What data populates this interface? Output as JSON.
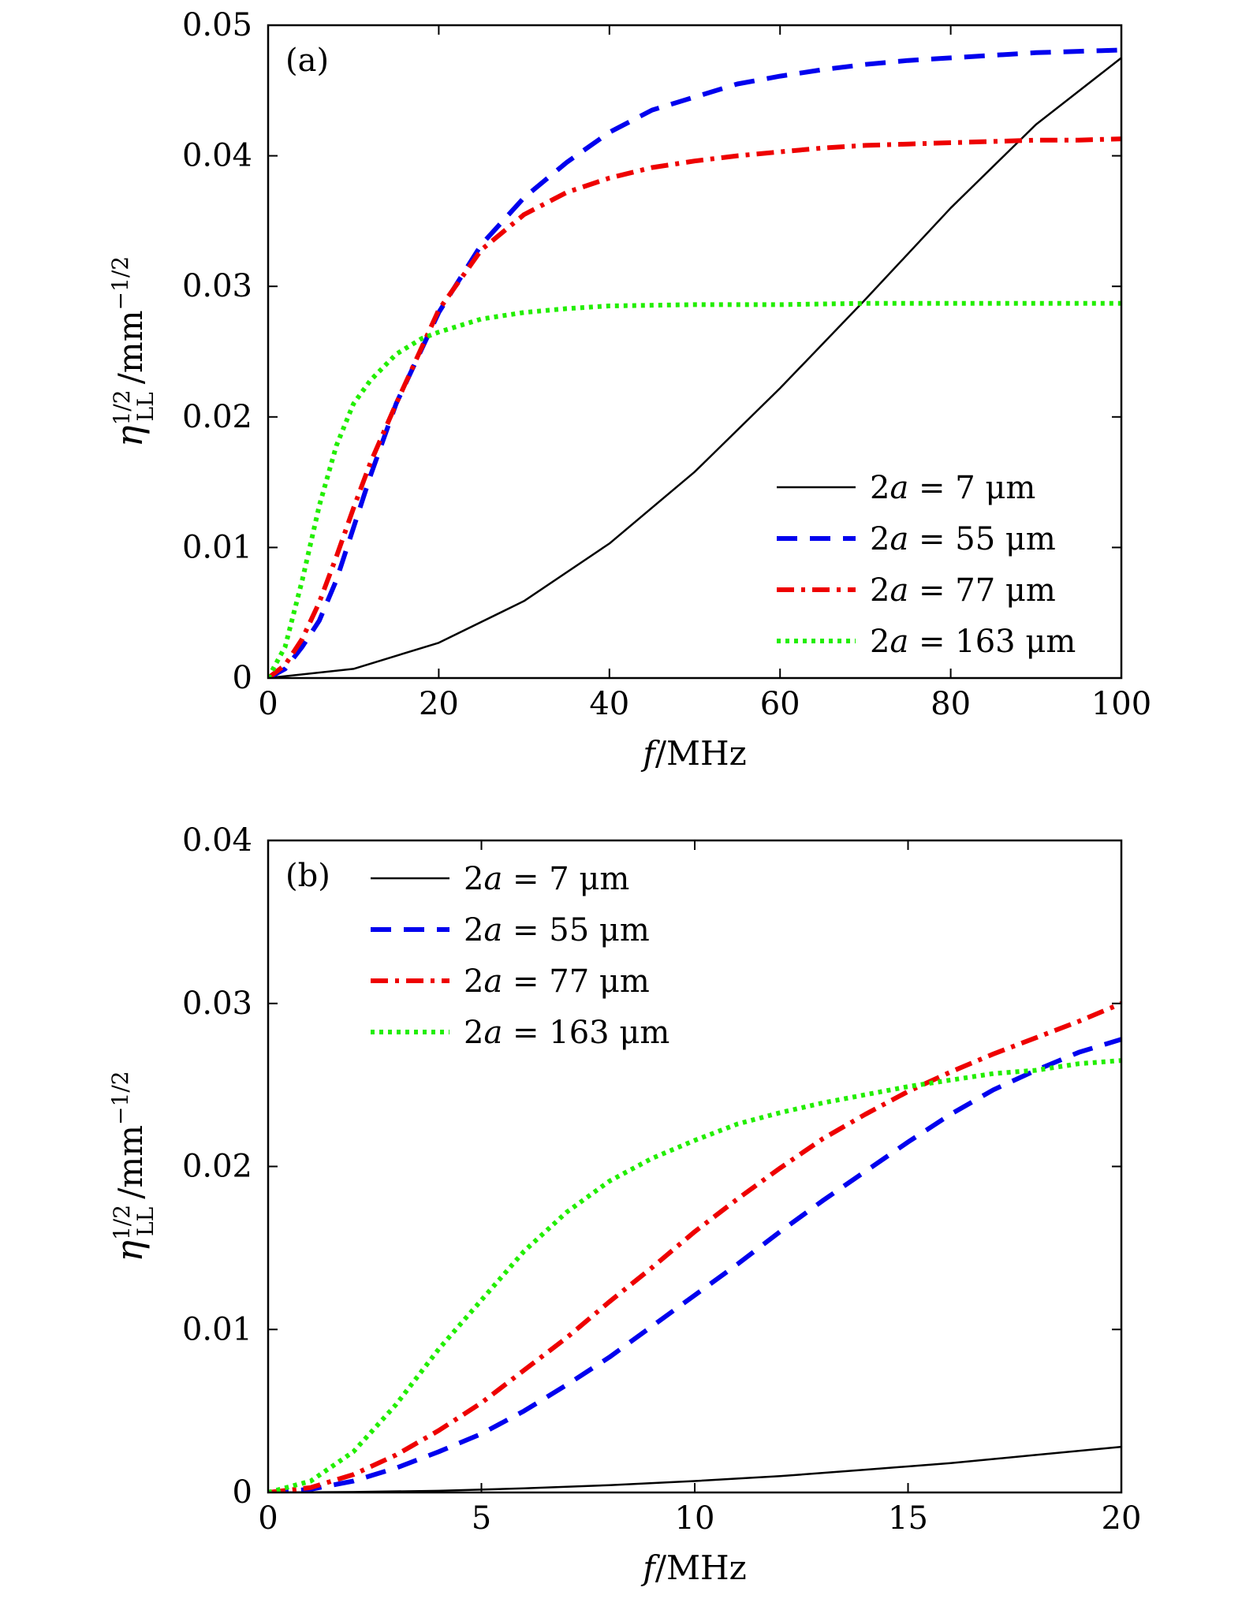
{
  "chart_data": [
    {
      "type": "line",
      "panel_label": "(a)",
      "xlabel": "f/MHz",
      "ylabel": "η_LL^{1/2}/mm^{−1/2}",
      "xlim": [
        0,
        100
      ],
      "ylim": [
        0,
        0.05
      ],
      "xticks": [
        "0",
        "20",
        "40",
        "60",
        "80",
        "100"
      ],
      "yticks": [
        "0",
        "0.01",
        "0.02",
        "0.03",
        "0.04",
        "0.05"
      ],
      "legend": "bottom-right",
      "series": [
        {
          "name": "2a = 7 μm",
          "color": "#000000",
          "style": "solid",
          "x": [
            0,
            10,
            20,
            30,
            40,
            50,
            60,
            70,
            80,
            90,
            100
          ],
          "y": [
            0,
            0.0007,
            0.0027,
            0.0059,
            0.0103,
            0.0158,
            0.0222,
            0.029,
            0.036,
            0.0424,
            0.0475
          ]
        },
        {
          "name": "2a = 55 μm",
          "color": "#0000ee",
          "style": "dashed",
          "x": [
            0,
            2,
            4,
            6,
            8,
            10,
            12,
            15,
            20,
            25,
            30,
            35,
            40,
            45,
            50,
            55,
            60,
            65,
            70,
            75,
            80,
            85,
            90,
            95,
            100
          ],
          "y": [
            0,
            0.0007,
            0.0024,
            0.0044,
            0.0075,
            0.0115,
            0.0155,
            0.021,
            0.028,
            0.0332,
            0.0368,
            0.0395,
            0.0418,
            0.0435,
            0.0445,
            0.0455,
            0.0461,
            0.0466,
            0.047,
            0.0473,
            0.0475,
            0.0477,
            0.0479,
            0.048,
            0.0481
          ]
        },
        {
          "name": "2a = 77 μm",
          "color": "#ee0000",
          "style": "dashdot",
          "x": [
            0,
            2,
            4,
            6,
            8,
            10,
            12,
            15,
            20,
            25,
            30,
            35,
            40,
            45,
            50,
            55,
            60,
            65,
            70,
            75,
            80,
            85,
            90,
            95,
            100
          ],
          "y": [
            0,
            0.001,
            0.003,
            0.0058,
            0.0093,
            0.013,
            0.0165,
            0.021,
            0.0282,
            0.0328,
            0.0355,
            0.0372,
            0.0383,
            0.0391,
            0.0396,
            0.04,
            0.0403,
            0.0406,
            0.0408,
            0.0409,
            0.041,
            0.0411,
            0.0412,
            0.0412,
            0.0413
          ]
        },
        {
          "name": "2a = 163 μm",
          "color": "#22ee00",
          "style": "dotted",
          "x": [
            0,
            2,
            4,
            6,
            8,
            10,
            12,
            15,
            18,
            20,
            25,
            30,
            35,
            40,
            50,
            60,
            70,
            80,
            90,
            100
          ],
          "y": [
            0,
            0.0024,
            0.0075,
            0.0132,
            0.0178,
            0.021,
            0.0228,
            0.0248,
            0.026,
            0.0265,
            0.0275,
            0.028,
            0.0283,
            0.0285,
            0.0286,
            0.0286,
            0.0287,
            0.0287,
            0.0287,
            0.0287
          ]
        }
      ]
    },
    {
      "type": "line",
      "panel_label": "(b)",
      "xlabel": "f/MHz",
      "ylabel": "η_LL^{1/2}/mm^{−1/2}",
      "xlim": [
        0,
        20
      ],
      "ylim": [
        0,
        0.04
      ],
      "xticks": [
        "0",
        "5",
        "10",
        "15",
        "20"
      ],
      "yticks": [
        "0",
        "0.01",
        "0.02",
        "0.03",
        "0.04"
      ],
      "legend": "top-left",
      "series": [
        {
          "name": "2a = 7 μm",
          "color": "#000000",
          "style": "solid",
          "x": [
            0,
            2,
            4,
            6,
            8,
            10,
            12,
            14,
            16,
            18,
            20
          ],
          "y": [
            0,
            3e-05,
            0.0001,
            0.00025,
            0.00045,
            0.0007,
            0.001,
            0.0014,
            0.0018,
            0.0023,
            0.0028
          ]
        },
        {
          "name": "2a = 55 μm",
          "color": "#0000ee",
          "style": "dashed",
          "x": [
            0,
            1,
            2,
            3,
            4,
            5,
            6,
            7,
            8,
            9,
            10,
            11,
            12,
            13,
            14,
            15,
            16,
            17,
            18,
            19,
            20
          ],
          "y": [
            0,
            0.0002,
            0.0007,
            0.0015,
            0.0025,
            0.0036,
            0.005,
            0.0066,
            0.0083,
            0.0102,
            0.0121,
            0.014,
            0.016,
            0.0179,
            0.0197,
            0.0215,
            0.0232,
            0.0247,
            0.0259,
            0.027,
            0.0278
          ]
        },
        {
          "name": "2a = 77 μm",
          "color": "#ee0000",
          "style": "dashdot",
          "x": [
            0,
            1,
            2,
            3,
            4,
            5,
            6,
            7,
            8,
            9,
            10,
            11,
            12,
            13,
            14,
            15,
            16,
            17,
            18,
            19,
            20
          ],
          "y": [
            0,
            0.0003,
            0.0011,
            0.0023,
            0.0038,
            0.0055,
            0.0075,
            0.0095,
            0.0117,
            0.0138,
            0.016,
            0.018,
            0.0199,
            0.0217,
            0.0232,
            0.0246,
            0.0258,
            0.0269,
            0.0279,
            0.0289,
            0.03
          ]
        },
        {
          "name": "2a = 163 μm",
          "color": "#22ee00",
          "style": "dotted",
          "x": [
            0,
            1,
            2,
            3,
            4,
            5,
            6,
            7,
            8,
            9,
            10,
            11,
            12,
            13,
            14,
            15,
            16,
            17,
            18,
            19,
            20
          ],
          "y": [
            0,
            0.0007,
            0.0025,
            0.0054,
            0.0088,
            0.0118,
            0.0148,
            0.0172,
            0.0191,
            0.0205,
            0.0216,
            0.0226,
            0.0233,
            0.0239,
            0.0244,
            0.0249,
            0.0253,
            0.0257,
            0.0259,
            0.0263,
            0.0265
          ]
        }
      ]
    }
  ]
}
